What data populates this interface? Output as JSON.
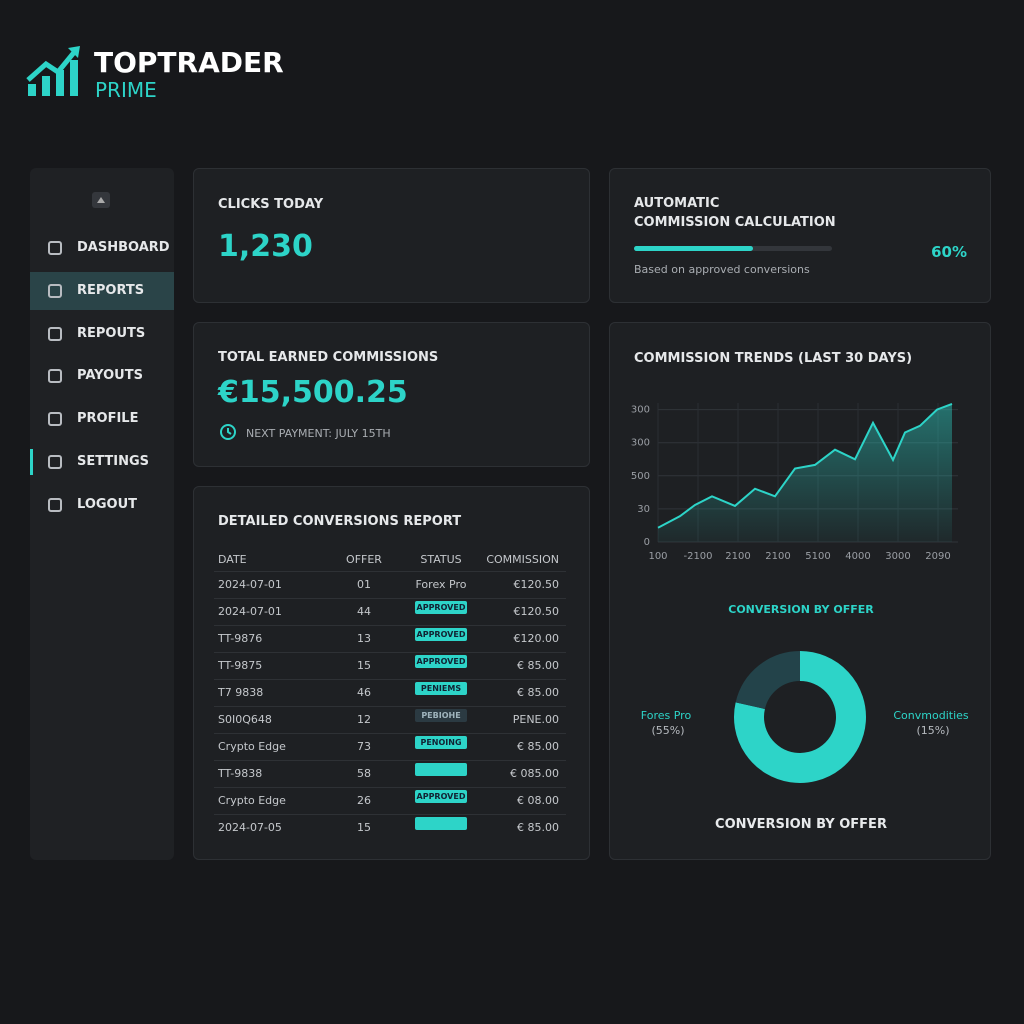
{
  "brand": {
    "name": "TOPTRADER",
    "sub": "PRIME"
  },
  "nav": [
    "DASHBOARD",
    "REPORTS",
    "REPOUTS",
    "PAYOUTS",
    "PROFILE",
    "SETTINGS",
    "LOGOUT"
  ],
  "clicks": {
    "title": "CLICKS TODAY",
    "value": "1,230"
  },
  "calc": {
    "title_1": "AUTOMATIC",
    "title_2": "COMMISSION CALCULATION",
    "progress": 60,
    "progress_label": "60%",
    "note": "Based on approved conversions"
  },
  "earned": {
    "title": "TOTAL EARNED COMMISSIONS",
    "value": "€15,500.25",
    "note": "NEXT PAYMENT: JULY 15TH"
  },
  "table": {
    "title": "DETAILED CONVERSIONS REPORT",
    "columns": [
      "DATE",
      "OFFER",
      "STATUS",
      "COMMISSION"
    ],
    "rows": [
      [
        "2024-07-01",
        "01",
        "Forex Pro",
        "€120.50"
      ],
      [
        "2024-07-01",
        "44",
        "APPROVED",
        "€120.50"
      ],
      [
        "TT-9876",
        "13",
        "APPROVED",
        "€120.00"
      ],
      [
        "TT-9875",
        "15",
        "APPROVED",
        "€ 85.00"
      ],
      [
        "T7 9838",
        "46",
        "PENIEMS",
        "€ 85.00"
      ],
      [
        "S0I0Q648",
        "12",
        "PEBIOHE",
        "PENE.00"
      ],
      [
        "Crypto Edge",
        "73",
        "PENOING",
        "€ 85.00"
      ],
      [
        "TT-9838",
        "58",
        null,
        "€ 085.00"
      ],
      [
        "Crypto Edge",
        "26",
        "APPROVED",
        "€ 08.00"
      ],
      [
        "2024-07-05",
        "15",
        null,
        "€ 85.00"
      ]
    ]
  },
  "trend": {
    "type": "line",
    "title": "COMMISSION TRENDS (LAST 30 DAYS)",
    "x": [
      0,
      1.1,
      1.85,
      2.7,
      3.85,
      4.85,
      5.85,
      6.85,
      7.85,
      8.85,
      9.85,
      10.75,
      11.75,
      12.35,
      13.1,
      13.95,
      14.7
    ],
    "values": [
      43,
      78,
      112,
      138,
      109,
      161,
      138,
      222,
      233,
      279,
      250,
      360,
      248,
      331,
      351,
      400,
      417
    ],
    "color": "#2dd4c8",
    "xlim": [
      0,
      15
    ],
    "xticks": [
      {
        "value": 0,
        "label": "100"
      },
      {
        "value": 2,
        "label": "-2100"
      },
      {
        "value": 4,
        "label": "2100"
      },
      {
        "value": 6,
        "label": "2100"
      },
      {
        "value": 8,
        "label": "5100"
      },
      {
        "value": 10,
        "label": "4000"
      },
      {
        "value": 12,
        "label": "3000"
      },
      {
        "value": 14,
        "label": "2090"
      }
    ],
    "ylim": [
      0,
      420
    ],
    "yticks": [
      0,
      {
        "value": 100,
        "label": "30"
      },
      {
        "value": 200,
        "label": "500"
      },
      300,
      {
        "value": 400,
        "label": "300"
      }
    ],
    "grid": true
  },
  "donut": {
    "type": "pie",
    "title": "CONVERSION BY OFFER",
    "footer": "CONVERSION BY OFFER",
    "categories": [
      "Fores Pro",
      "Convmodities"
    ],
    "values": [
      55,
      15
    ],
    "value_labels": [
      "(55%)",
      "(15%)"
    ],
    "colors": [
      "#2dd4c8",
      "#23434a"
    ]
  }
}
